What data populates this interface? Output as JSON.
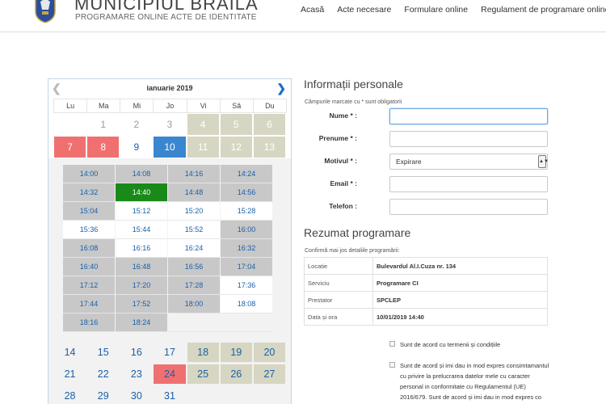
{
  "header": {
    "title": "MUNICIPIUL BRAILA",
    "subtitle": "PROGRAMARE ONLINE ACTE DE IDENTITATE",
    "nav": [
      "Acasă",
      "Acte necesare",
      "Formulare online",
      "Regulament de programare online"
    ]
  },
  "calendar": {
    "month": "ianuarie 2019",
    "weekdays": [
      "Lu",
      "Ma",
      "Mi",
      "Jo",
      "Vi",
      "Sâ",
      "Du"
    ],
    "week1": [
      "",
      "1",
      "2",
      "3",
      "4",
      "5",
      "6"
    ],
    "week2": [
      "7",
      "8",
      "9",
      "10",
      "11",
      "12",
      "13"
    ],
    "week3": [
      "14",
      "15",
      "16",
      "17",
      "18",
      "19",
      "20"
    ],
    "week4": [
      "21",
      "22",
      "23",
      "24",
      "25",
      "26",
      "27"
    ],
    "week5": [
      "28",
      "29",
      "30",
      "31"
    ],
    "slots": [
      "14:00",
      "14:08",
      "14:16",
      "14:24",
      "14:32",
      "14:40",
      "14:48",
      "14:56",
      "15:04",
      "15:12",
      "15:20",
      "15:28",
      "15:36",
      "15:44",
      "15:52",
      "16:00",
      "16:08",
      "16:16",
      "16:24",
      "16:32",
      "16:40",
      "16:48",
      "16:56",
      "17:04",
      "17:12",
      "17:20",
      "17:28",
      "17:36",
      "17:44",
      "17:52",
      "18:00",
      "18:08",
      "18:16",
      "18:24"
    ],
    "selected_slot": "14:40",
    "selected_day": "10"
  },
  "personal": {
    "title": "Informații personale",
    "note": "Câmpurile marcate cu * sunt obligatorii",
    "name_label": "Nume * :",
    "surname_label": "Prenume * :",
    "reason_label": "Motivul * :",
    "reason_value": "Expirare",
    "email_label": "Email * :",
    "phone_label": "Telefon :"
  },
  "summary": {
    "title": "Rezumat programare",
    "note": "Confirmă mai jos detaliile programării:",
    "rows": [
      {
        "k": "Locatie",
        "v": "Bulevardul Al.I.Cuza nr. 134"
      },
      {
        "k": "Serviciu",
        "v": "Programare CI"
      },
      {
        "k": "Prestator",
        "v": "SPCLEP"
      },
      {
        "k": "Data și ora",
        "v": "10/01/2019 14:40"
      }
    ]
  },
  "consent": {
    "terms": "Sunt de acord cu termenii și condițiile",
    "gdpr": "Sunt de acord și imi dau in mod expres consimtamantul cu privire la prelucrarea datelor mele cu caracter personal in conformitate cu Regulamentul (UE) 2016/679. Sunt de acord și imi dau in mod expres co"
  },
  "colors": {
    "accent": "#1a5fa8",
    "selected_slot": "#198a19",
    "busy_day": "#d6d6c2",
    "holiday": "#f07070",
    "selected_day": "#3a86cf"
  }
}
